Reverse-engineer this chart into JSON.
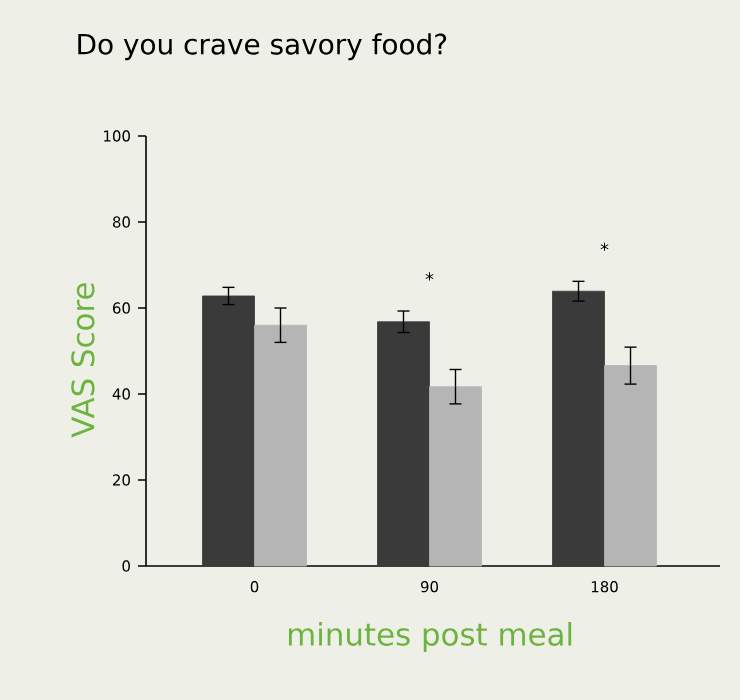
{
  "chart_data": {
    "type": "bar",
    "title": "Do you crave savory food?",
    "xlabel": "minutes post meal",
    "ylabel": "VAS Score",
    "categories": [
      "0",
      "90",
      "180"
    ],
    "series": [
      {
        "color": "#3a3a3a",
        "values": [
          62.8,
          56.8,
          63.9
        ],
        "errors": [
          2,
          2.5,
          2.3
        ]
      },
      {
        "color": "#b5b5b5",
        "values": [
          56,
          41.7,
          46.6
        ],
        "errors": [
          4,
          4,
          4.3
        ]
      }
    ],
    "ylim": [
      0,
      100
    ],
    "yticks": [
      0,
      20,
      40,
      60,
      80,
      100
    ],
    "annotations": [
      "*",
      "*"
    ]
  }
}
